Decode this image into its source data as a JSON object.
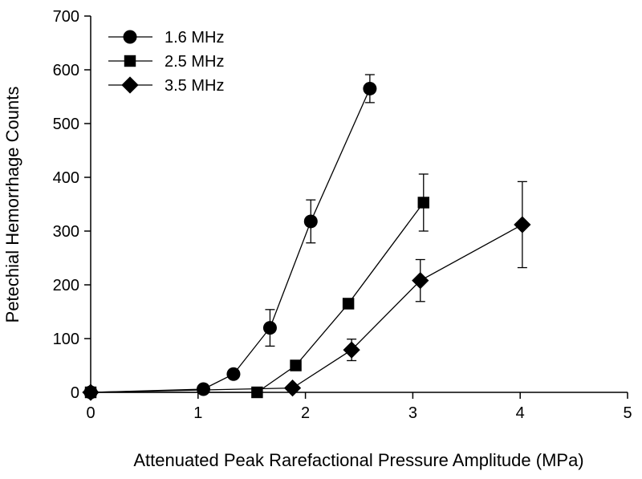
{
  "chart_data": {
    "type": "line",
    "title": "",
    "xlabel": "Attenuated Peak Rarefactional Pressure Amplitude (MPa)",
    "ylabel": "Petechial Hemorrhage Counts",
    "xlim": [
      0,
      5
    ],
    "ylim": [
      0,
      700
    ],
    "xticks": [
      0,
      1,
      2,
      3,
      4,
      5
    ],
    "yticks": [
      0,
      100,
      200,
      300,
      400,
      500,
      600,
      700
    ],
    "grid": false,
    "legend_position": "top-left",
    "series": [
      {
        "name": "1.6 MHz",
        "marker": "circle",
        "x": [
          0,
          1.05,
          1.33,
          1.67,
          2.05,
          2.6
        ],
        "y": [
          0,
          6,
          34,
          120,
          318,
          565
        ],
        "err": [
          0,
          0,
          8,
          34,
          40,
          26
        ]
      },
      {
        "name": "2.5 MHz",
        "marker": "square",
        "x": [
          0,
          1.55,
          1.91,
          2.4,
          3.1
        ],
        "y": [
          0,
          0,
          50,
          165,
          353
        ],
        "err": [
          0,
          0,
          0,
          0,
          53
        ]
      },
      {
        "name": "3.5 MHz",
        "marker": "diamond",
        "x": [
          0,
          1.88,
          2.43,
          3.07,
          4.02
        ],
        "y": [
          0,
          8,
          79,
          208,
          312
        ],
        "err": [
          0,
          0,
          20,
          39,
          80
        ]
      }
    ]
  }
}
